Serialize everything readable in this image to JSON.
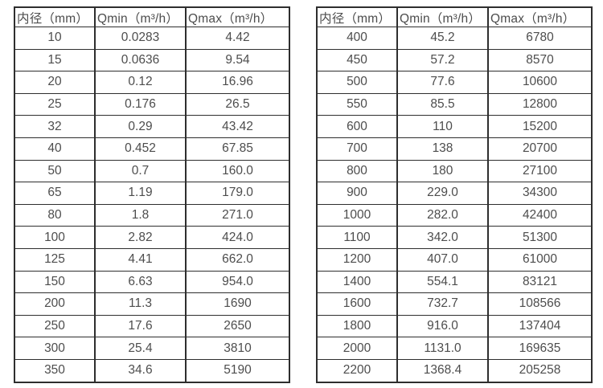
{
  "page": {
    "background": "#ffffff",
    "border_color": "#2e2e2e",
    "text_color": "#4d4d4d"
  },
  "tables": [
    {
      "name": "flow-table-small-diameters",
      "columns": [
        "内径（mm）",
        "Qmin（m³/h）",
        "Qmax（m³/h）"
      ],
      "rows": [
        [
          "10",
          "0.0283",
          "4.42"
        ],
        [
          "15",
          "0.0636",
          "9.54"
        ],
        [
          "20",
          "0.12",
          "16.96"
        ],
        [
          "25",
          "0.176",
          "26.5"
        ],
        [
          "32",
          "0.29",
          "43.42"
        ],
        [
          "40",
          "0.452",
          "67.85"
        ],
        [
          "50",
          "0.7",
          "160.0"
        ],
        [
          "65",
          "1.19",
          "179.0"
        ],
        [
          "80",
          "1.8",
          "271.0"
        ],
        [
          "100",
          "2.82",
          "424.0"
        ],
        [
          "125",
          "4.41",
          "662.0"
        ],
        [
          "150",
          "6.63",
          "954.0"
        ],
        [
          "200",
          "11.3",
          "1690"
        ],
        [
          "250",
          "17.6",
          "2650"
        ],
        [
          "300",
          "25.4",
          "3810"
        ],
        [
          "350",
          "34.6",
          "5190"
        ]
      ]
    },
    {
      "name": "flow-table-large-diameters",
      "columns": [
        "内径（mm）",
        "Qmin（m³/h）",
        "Qmax（m³/h）"
      ],
      "rows": [
        [
          "400",
          "45.2",
          "6780"
        ],
        [
          "450",
          "57.2",
          "8570"
        ],
        [
          "500",
          "77.6",
          "10600"
        ],
        [
          "550",
          "85.5",
          "12800"
        ],
        [
          "600",
          "110",
          "15200"
        ],
        [
          "700",
          "138",
          "20700"
        ],
        [
          "800",
          "180",
          "27100"
        ],
        [
          "900",
          "229.0",
          "34300"
        ],
        [
          "1000",
          "282.0",
          "42400"
        ],
        [
          "1100",
          "342.0",
          "51300"
        ],
        [
          "1200",
          "407.0",
          "61000"
        ],
        [
          "1400",
          "554.1",
          "83121"
        ],
        [
          "1600",
          "732.7",
          "108566"
        ],
        [
          "1800",
          "916.0",
          "137404"
        ],
        [
          "2000",
          "1131.0",
          "169635"
        ],
        [
          "2200",
          "1368.4",
          "205258"
        ]
      ]
    }
  ]
}
